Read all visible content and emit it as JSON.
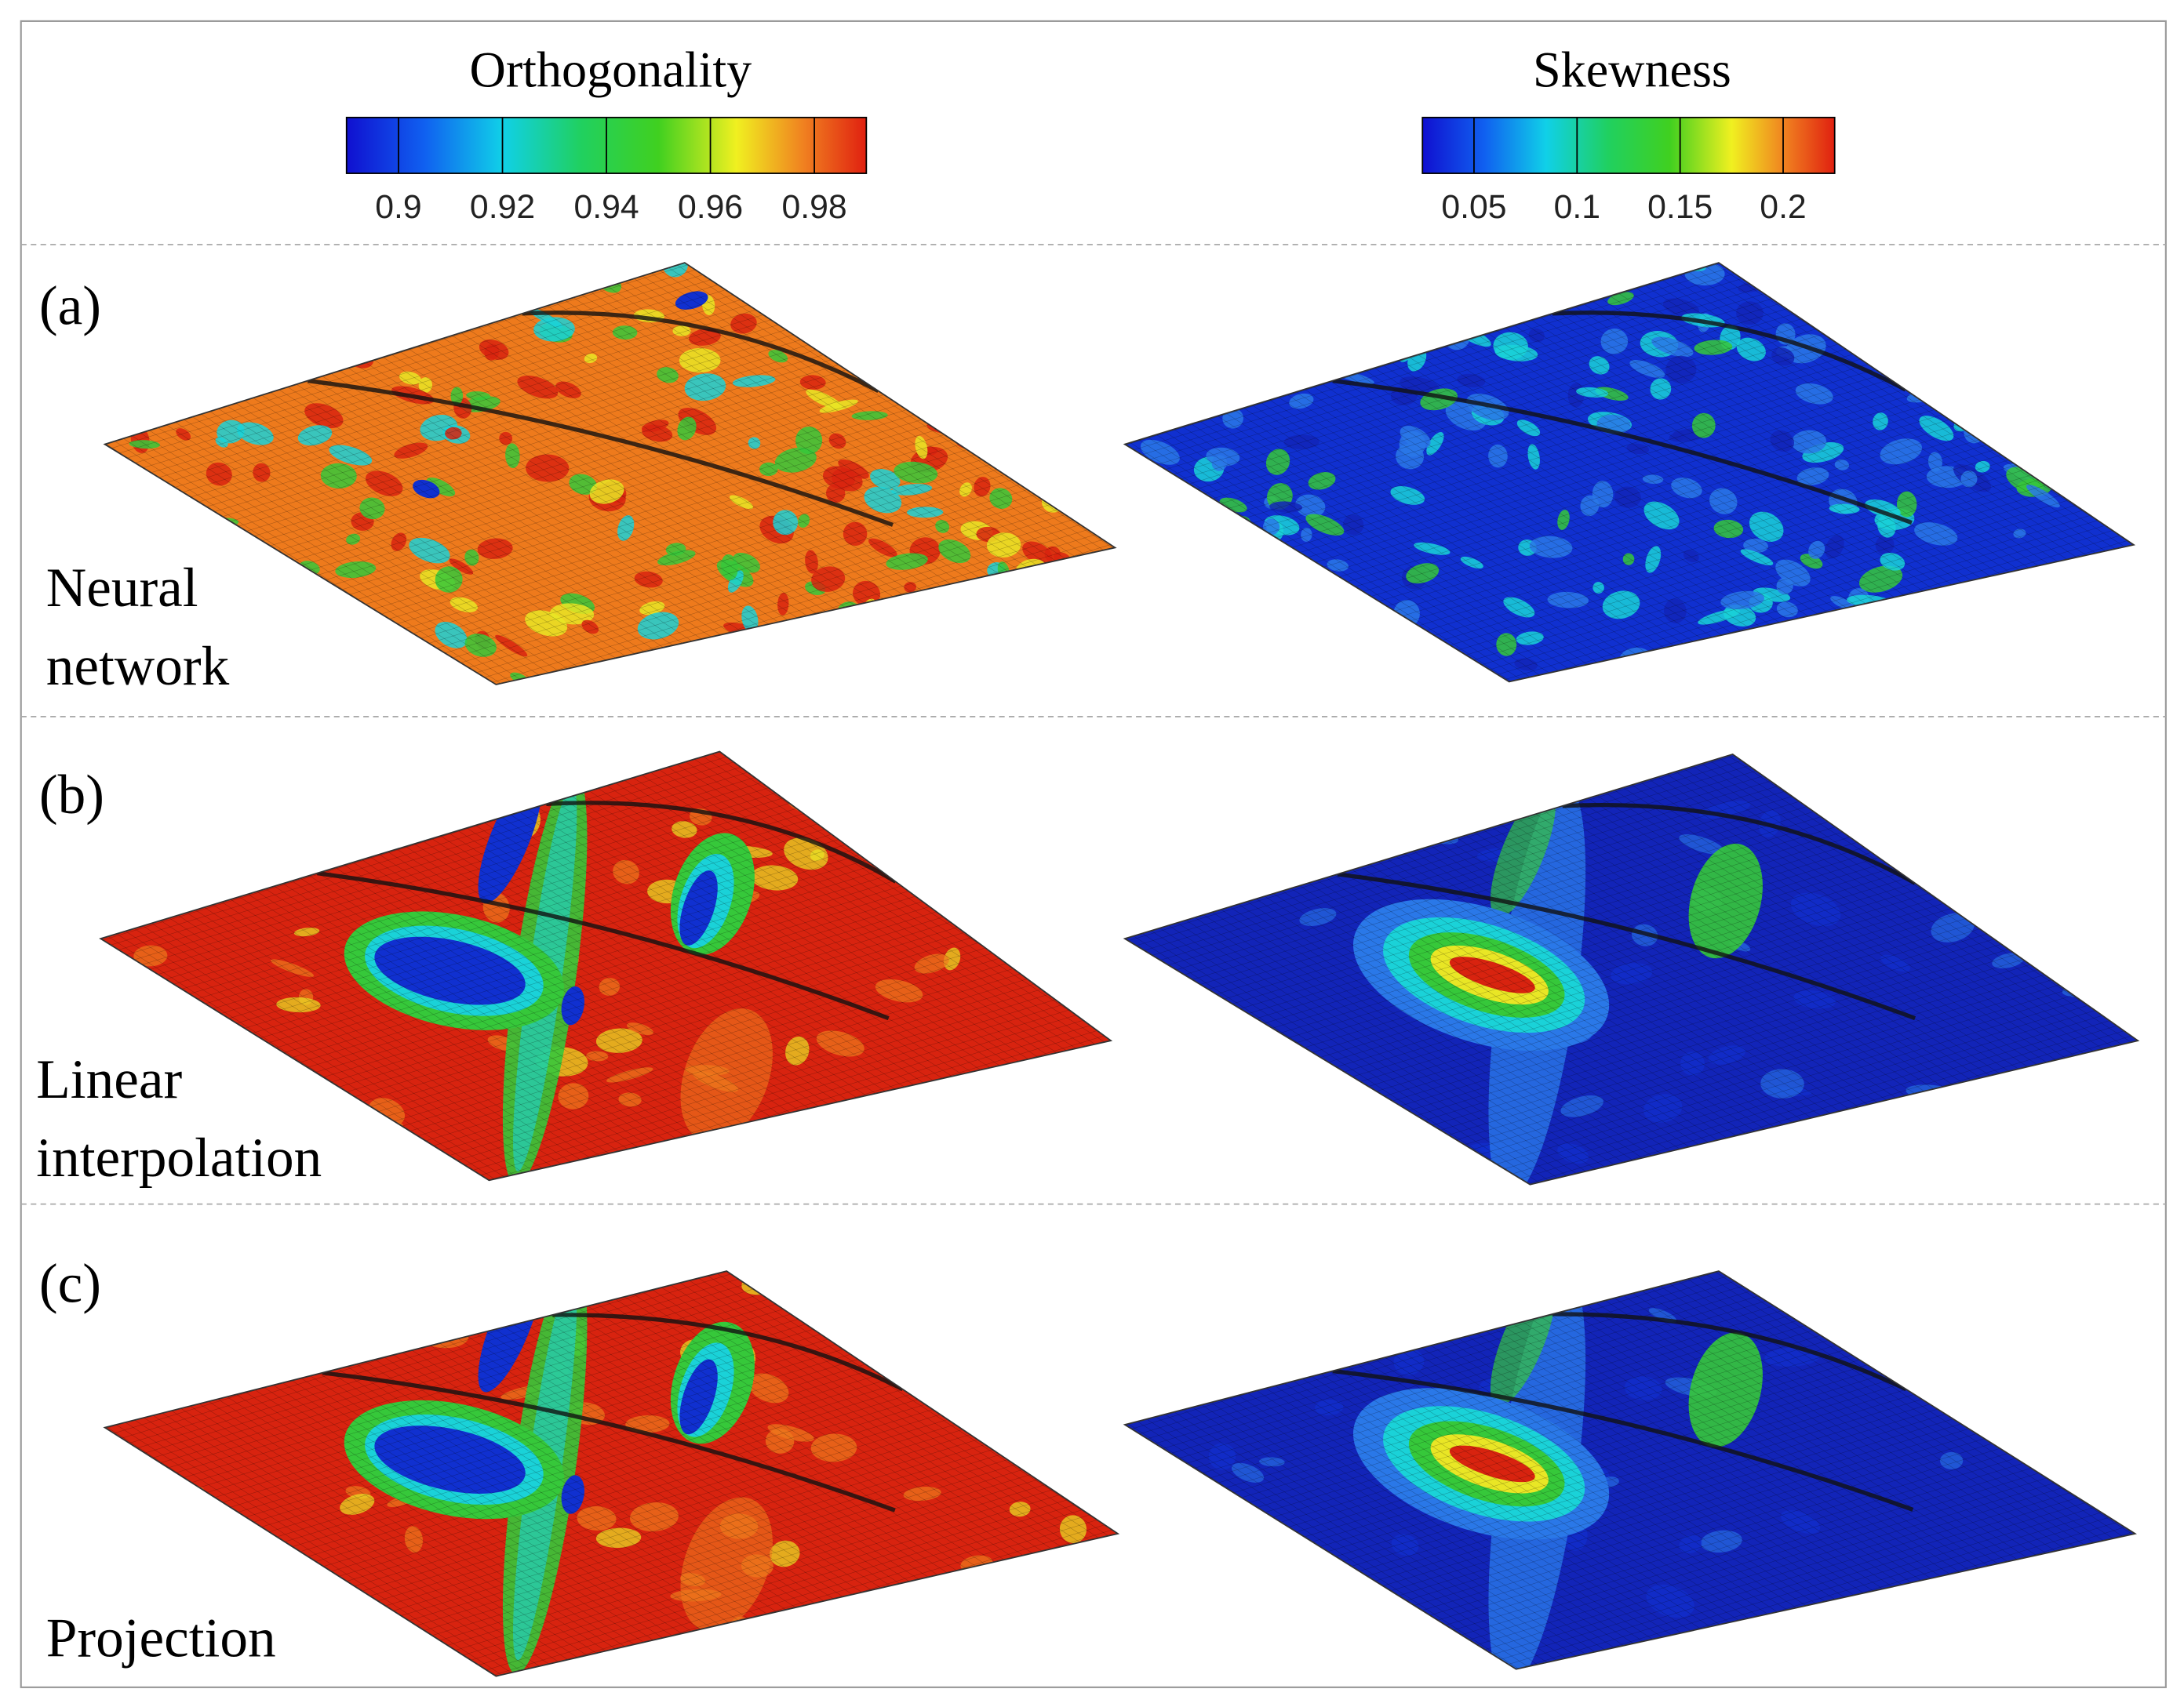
{
  "colorbars": [
    {
      "title": "Orthogonality",
      "lim": [
        0.89,
        0.99
      ],
      "ticks": [
        0.9,
        0.92,
        0.94,
        0.96,
        0.98
      ]
    },
    {
      "title": "Skewness",
      "lim": [
        0.025,
        0.225
      ],
      "ticks": [
        0.05,
        0.1,
        0.15,
        0.2
      ]
    }
  ],
  "panels": [
    {
      "label": "(a)",
      "method": [
        "Neural",
        "network"
      ]
    },
    {
      "label": "(b)",
      "method": [
        "Linear",
        "interpolation"
      ]
    },
    {
      "label": "(c)",
      "method": [
        "Projection"
      ]
    }
  ]
}
